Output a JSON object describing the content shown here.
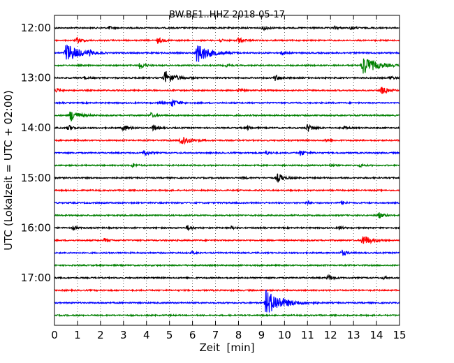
{
  "chart_data": {
    "type": "line",
    "title": "BW.BE1..HHZ 2018-05-17",
    "xlabel": "Zeit  [min]",
    "ylabel": "UTC (Lokalzeit = UTC + 02:00)",
    "xlim": [
      0,
      15
    ],
    "x_ticks": [
      "0",
      "1",
      "2",
      "3",
      "4",
      "5",
      "6",
      "7",
      "8",
      "9",
      "10",
      "11",
      "12",
      "13",
      "14",
      "15"
    ],
    "y_tick_labels": [
      "12:00",
      "13:00",
      "14:00",
      "15:00",
      "16:00",
      "17:00"
    ],
    "grid": "vertical dotted at each minute",
    "trace_colors": [
      "#000000",
      "#ff0000",
      "#0000ff",
      "#008000"
    ],
    "traces": [
      {
        "start": "12:00",
        "color": "#000000",
        "events": [
          [
            2.4,
            0.15
          ],
          [
            9.1,
            0.25
          ],
          [
            12.2,
            0.15
          ],
          [
            12.9,
            0.2
          ]
        ]
      },
      {
        "start": "12:15",
        "color": "#ff0000",
        "events": [
          [
            1.0,
            0.3
          ],
          [
            4.5,
            0.3
          ],
          [
            7.2,
            0.15
          ],
          [
            8.0,
            0.3
          ]
        ]
      },
      {
        "start": "12:30",
        "color": "#0000ff",
        "events": [
          [
            0.5,
            1.0
          ],
          [
            6.2,
            1.0
          ],
          [
            1.5,
            0.2
          ],
          [
            9.9,
            0.2
          ]
        ]
      },
      {
        "start": "12:45",
        "color": "#008000",
        "events": [
          [
            3.7,
            0.35
          ],
          [
            7.5,
            0.15
          ],
          [
            13.4,
            1.0
          ]
        ]
      },
      {
        "start": "13:00",
        "color": "#000000",
        "events": [
          [
            1.3,
            0.15
          ],
          [
            4.8,
            0.7
          ],
          [
            9.6,
            0.3
          ],
          [
            14.6,
            0.2
          ]
        ]
      },
      {
        "start": "13:15",
        "color": "#ff0000",
        "events": [
          [
            0.1,
            0.2
          ],
          [
            8.0,
            0.2
          ],
          [
            14.2,
            0.4
          ]
        ]
      },
      {
        "start": "13:30",
        "color": "#0000ff",
        "events": [
          [
            4.6,
            0.2
          ],
          [
            5.1,
            0.4
          ]
        ]
      },
      {
        "start": "13:45",
        "color": "#008000",
        "events": [
          [
            0.7,
            0.6
          ],
          [
            4.2,
            0.25
          ]
        ]
      },
      {
        "start": "14:00",
        "color": "#000000",
        "events": [
          [
            0.6,
            0.3
          ],
          [
            3.0,
            0.35
          ],
          [
            4.3,
            0.3
          ],
          [
            8.4,
            0.2
          ],
          [
            11.0,
            0.4
          ],
          [
            12.6,
            0.15
          ]
        ]
      },
      {
        "start": "14:15",
        "color": "#ff0000",
        "events": [
          [
            5.5,
            0.6
          ],
          [
            11.8,
            0.15
          ]
        ]
      },
      {
        "start": "14:30",
        "color": "#0000ff",
        "events": [
          [
            3.9,
            0.3
          ],
          [
            9.2,
            0.2
          ],
          [
            10.7,
            0.3
          ]
        ]
      },
      {
        "start": "14:45",
        "color": "#008000",
        "events": [
          [
            3.4,
            0.2
          ],
          [
            12.0,
            0.15
          ],
          [
            13.3,
            0.15
          ]
        ]
      },
      {
        "start": "15:00",
        "color": "#000000",
        "events": [
          [
            8.2,
            0.15
          ],
          [
            9.7,
            0.45
          ]
        ]
      },
      {
        "start": "15:15",
        "color": "#ff0000",
        "events": []
      },
      {
        "start": "15:30",
        "color": "#0000ff",
        "events": [
          [
            11.0,
            0.2
          ],
          [
            12.5,
            0.2
          ]
        ]
      },
      {
        "start": "15:45",
        "color": "#008000",
        "events": [
          [
            14.1,
            0.3
          ]
        ]
      },
      {
        "start": "16:00",
        "color": "#000000",
        "events": [
          [
            0.8,
            0.2
          ],
          [
            5.8,
            0.25
          ],
          [
            7.7,
            0.15
          ],
          [
            12.4,
            0.15
          ]
        ]
      },
      {
        "start": "16:15",
        "color": "#ff0000",
        "events": [
          [
            2.2,
            0.2
          ],
          [
            13.4,
            0.6
          ]
        ]
      },
      {
        "start": "16:30",
        "color": "#0000ff",
        "events": [
          [
            6.0,
            0.15
          ],
          [
            12.5,
            0.3
          ]
        ]
      },
      {
        "start": "16:45",
        "color": "#008000",
        "events": []
      },
      {
        "start": "17:00",
        "color": "#000000",
        "events": [
          [
            11.9,
            0.3
          ],
          [
            14.3,
            0.15
          ]
        ]
      },
      {
        "start": "17:15",
        "color": "#ff0000",
        "events": []
      },
      {
        "start": "17:30",
        "color": "#0000ff",
        "events": [
          [
            9.2,
            1.3
          ]
        ]
      },
      {
        "start": "17:45",
        "color": "#008000",
        "events": []
      }
    ]
  }
}
